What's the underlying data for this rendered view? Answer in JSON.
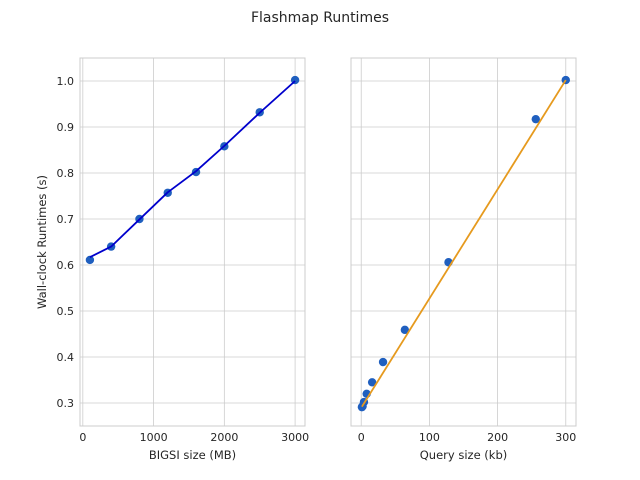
{
  "chart_data": {
    "title": "Flashmap Runtimes",
    "ylabel": "Wall-clock Runtimes (s)",
    "ylim": [
      0.25,
      1.05
    ],
    "yticks": [
      0.3,
      0.4,
      0.5,
      0.6,
      0.7,
      0.8,
      0.9,
      1.0
    ],
    "yticklabels": [
      "0.3",
      "0.4",
      "0.5",
      "0.6",
      "0.7",
      "0.8",
      "0.9",
      "1.0"
    ],
    "grid": true,
    "subplots": [
      {
        "type": "scatter",
        "xlabel": "BIGSI size (MB)",
        "xlim": [
          -40,
          3140
        ],
        "xticks": [
          0,
          1000,
          2000,
          3000
        ],
        "xticklabels": [
          "0",
          "1000",
          "2000",
          "3000"
        ],
        "marker_color": "#1f5fbf",
        "line_color": "#0000cc",
        "x": [
          100,
          400,
          800,
          1200,
          1600,
          2000,
          2500,
          3000
        ],
        "y": [
          0.611,
          0.64,
          0.7,
          0.757,
          0.802,
          0.858,
          0.932,
          1.002
        ],
        "fit_x": [
          100,
          400,
          800,
          1200,
          1600,
          2000,
          2500,
          3000
        ],
        "fit_y": [
          0.617,
          0.64,
          0.699,
          0.758,
          0.804,
          0.859,
          0.931,
          1.0
        ]
      },
      {
        "type": "scatter",
        "xlabel": "Query size (kb)",
        "xlim": [
          -15,
          315
        ],
        "xticks": [
          0,
          100,
          200,
          300
        ],
        "xticklabels": [
          "0",
          "100",
          "200",
          "300"
        ],
        "marker_color": "#1f5fbf",
        "line_color": "#e69a1e",
        "x": [
          1,
          2,
          4,
          8,
          16,
          32,
          64,
          128,
          256,
          300
        ],
        "y": [
          0.291,
          0.293,
          0.302,
          0.32,
          0.345,
          0.389,
          0.459,
          0.606,
          0.917,
          1.002
        ],
        "fit_x": [
          1,
          300
        ],
        "fit_y": [
          0.292,
          1.002
        ]
      }
    ]
  }
}
